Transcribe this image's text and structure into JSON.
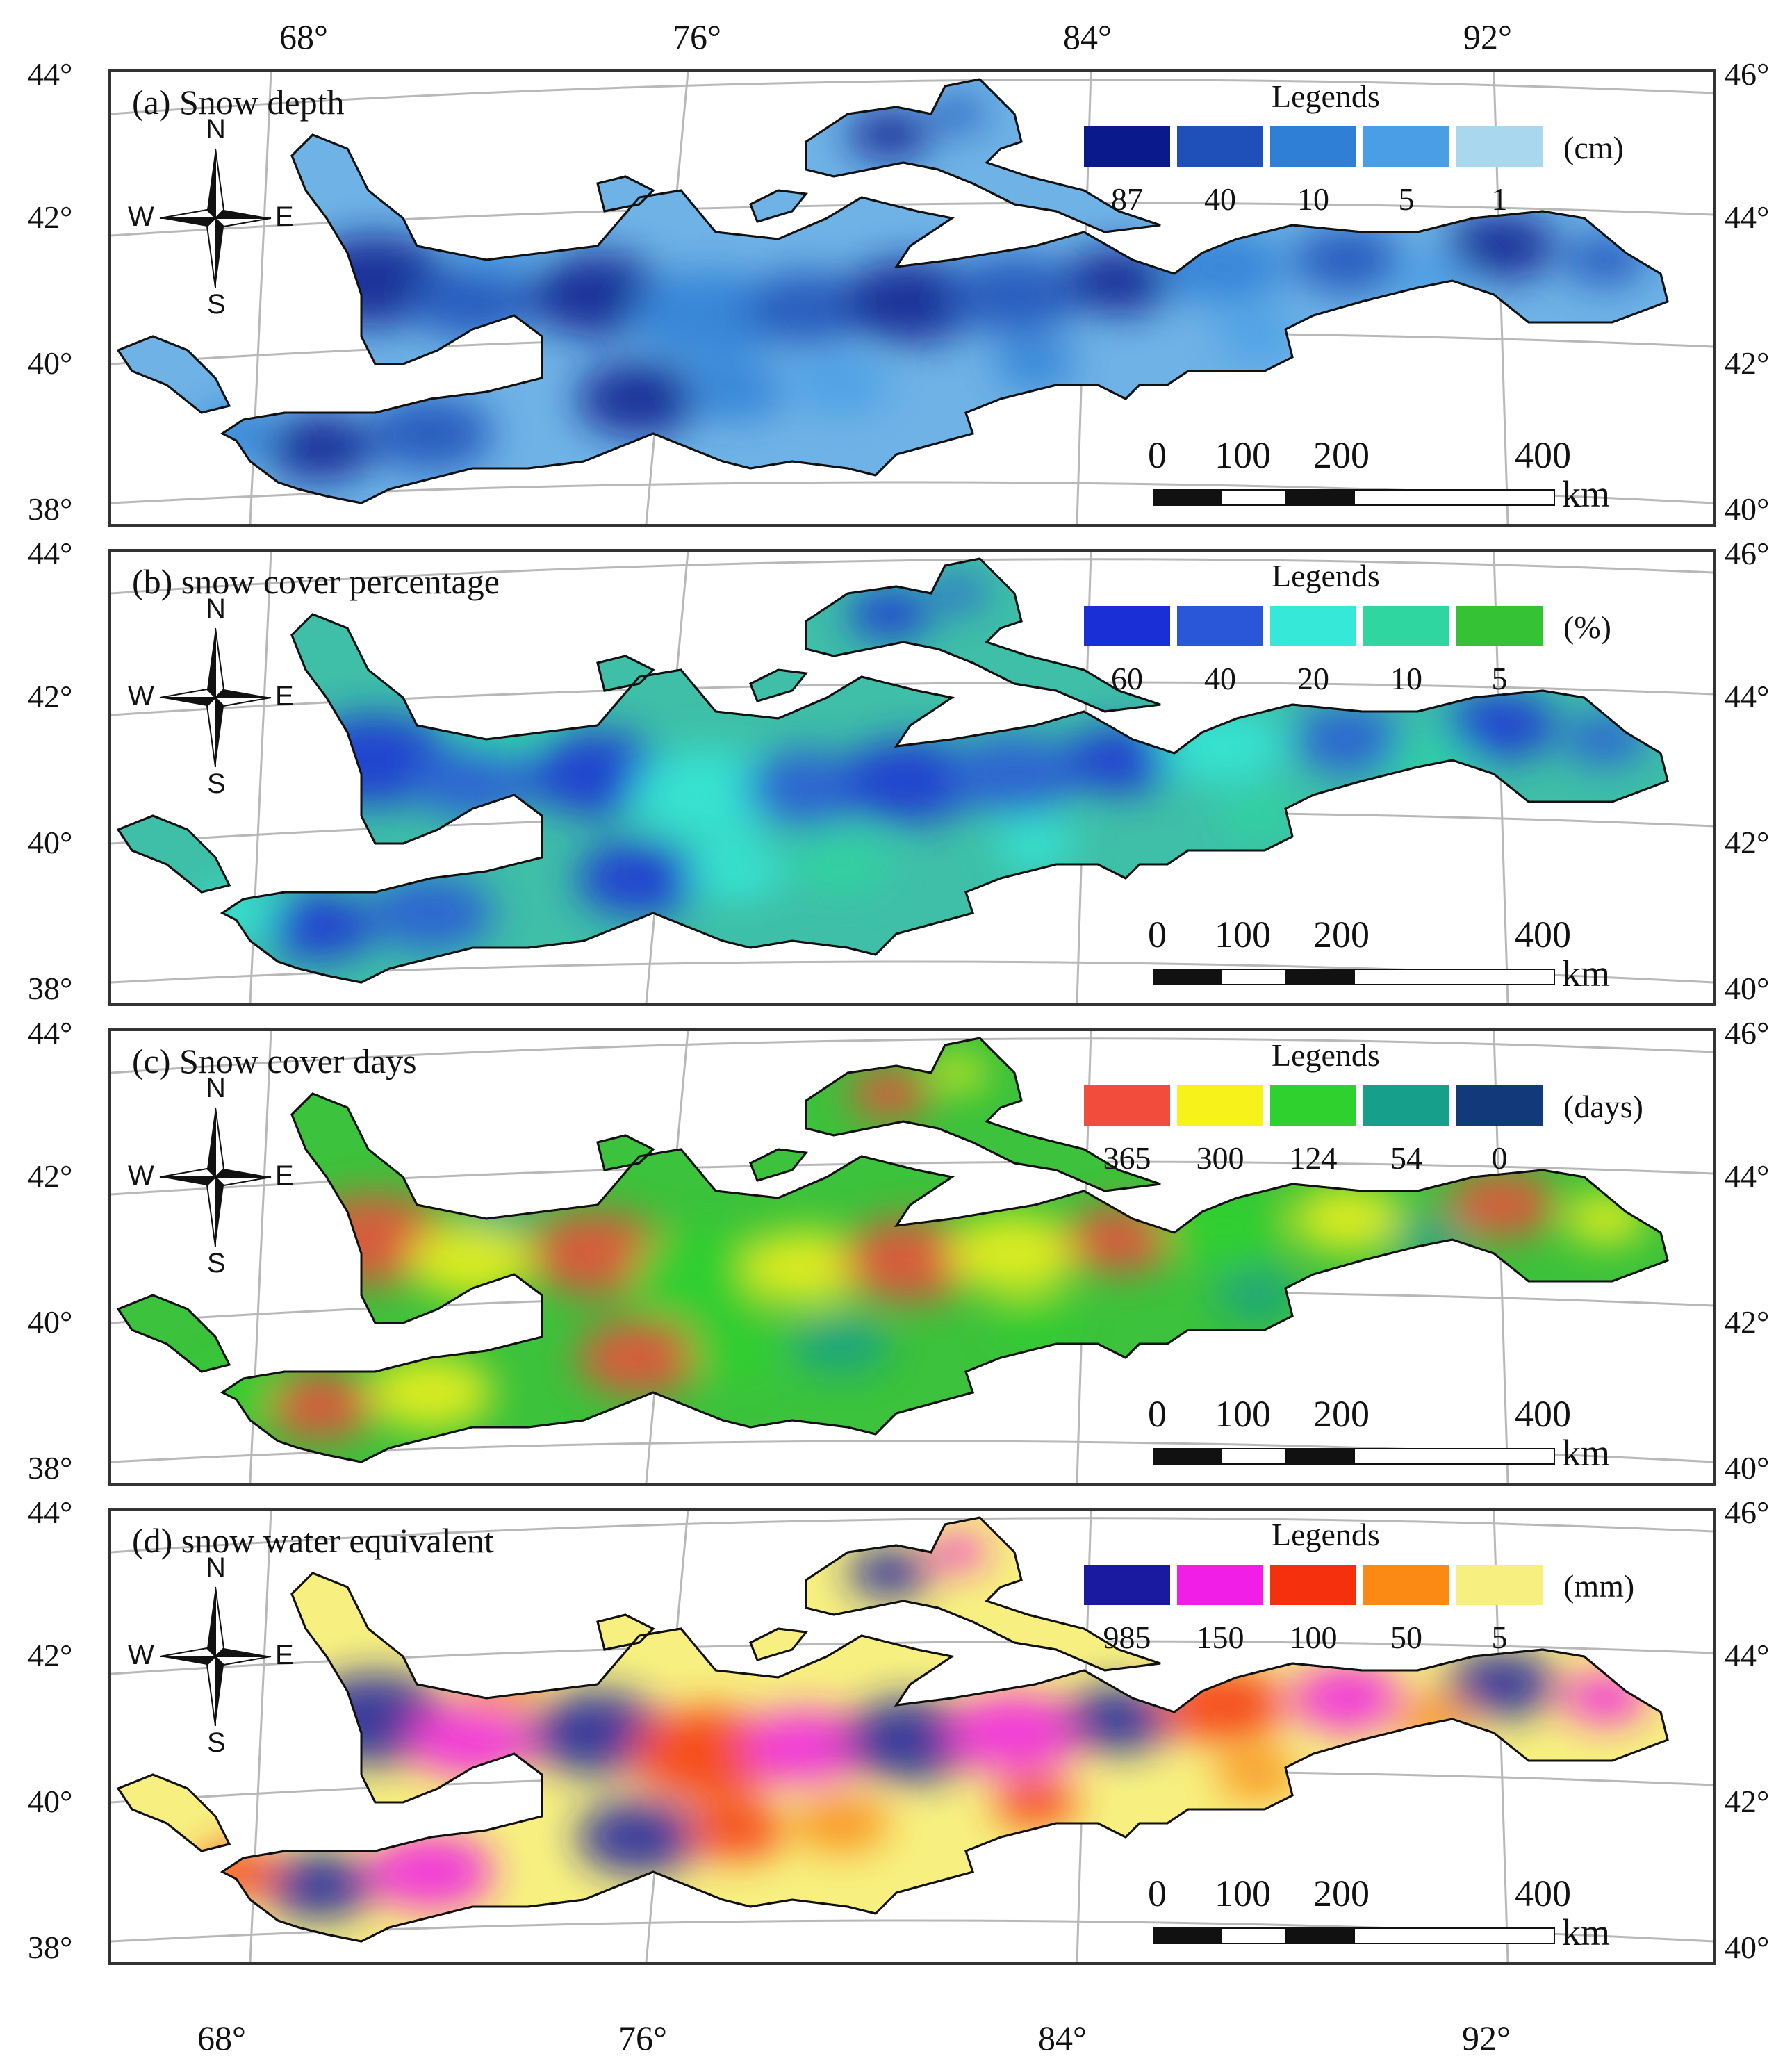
{
  "longitude_labels_top": [
    "68°",
    "76°",
    "84°",
    "92°"
  ],
  "longitude_labels_bottom": [
    "68°",
    "76°",
    "84°",
    "92°"
  ],
  "latitude_labels_left": [
    "44°",
    "42°",
    "40°",
    "38°"
  ],
  "latitude_labels_right": [
    "46°",
    "44°",
    "42°",
    "40°"
  ],
  "compass": {
    "north": "N",
    "south": "S",
    "east": "E",
    "west": "W"
  },
  "scale_bar": {
    "ticks": [
      "0",
      "100",
      "200",
      "400"
    ],
    "unit": "km"
  },
  "panels": [
    {
      "id": "a",
      "title": "(a) Snow depth",
      "legend_title": "Legends",
      "legend_unit": "(cm)",
      "legend_values": [
        "87",
        "40",
        "10",
        "5",
        "1"
      ],
      "legend_colors": [
        "#0a1a8c",
        "#1f4fb8",
        "#2f7fd6",
        "#4a9ee6",
        "#a9d8ee"
      ],
      "fill_base": "#6fb3e6"
    },
    {
      "id": "b",
      "title": "(b) snow cover percentage",
      "legend_title": "Legends",
      "legend_unit": "(%)",
      "legend_values": [
        "60",
        "40",
        "20",
        "10",
        "5"
      ],
      "legend_colors": [
        "#1a2fd6",
        "#2a56d8",
        "#35e8d8",
        "#2fd6a0",
        "#35c235"
      ],
      "fill_base": "#3fbfa8"
    },
    {
      "id": "c",
      "title": "(c) Snow cover days",
      "legend_title": "Legends",
      "legend_unit": "(days)",
      "legend_values": [
        "365",
        "300",
        "124",
        "54",
        "0"
      ],
      "legend_colors": [
        "#f24c3c",
        "#f7f31a",
        "#2ed12e",
        "#16a08c",
        "#12397a"
      ],
      "fill_base": "#3cc23c"
    },
    {
      "id": "d",
      "title": "(d) snow water equivalent",
      "legend_title": "Legends",
      "legend_unit": "(mm)",
      "legend_values": [
        "985",
        "150",
        "100",
        "50",
        "5"
      ],
      "legend_colors": [
        "#1a1aa0",
        "#f01ee6",
        "#f5300c",
        "#fa8a14",
        "#f7f080"
      ],
      "fill_base": "#f7f080"
    }
  ]
}
